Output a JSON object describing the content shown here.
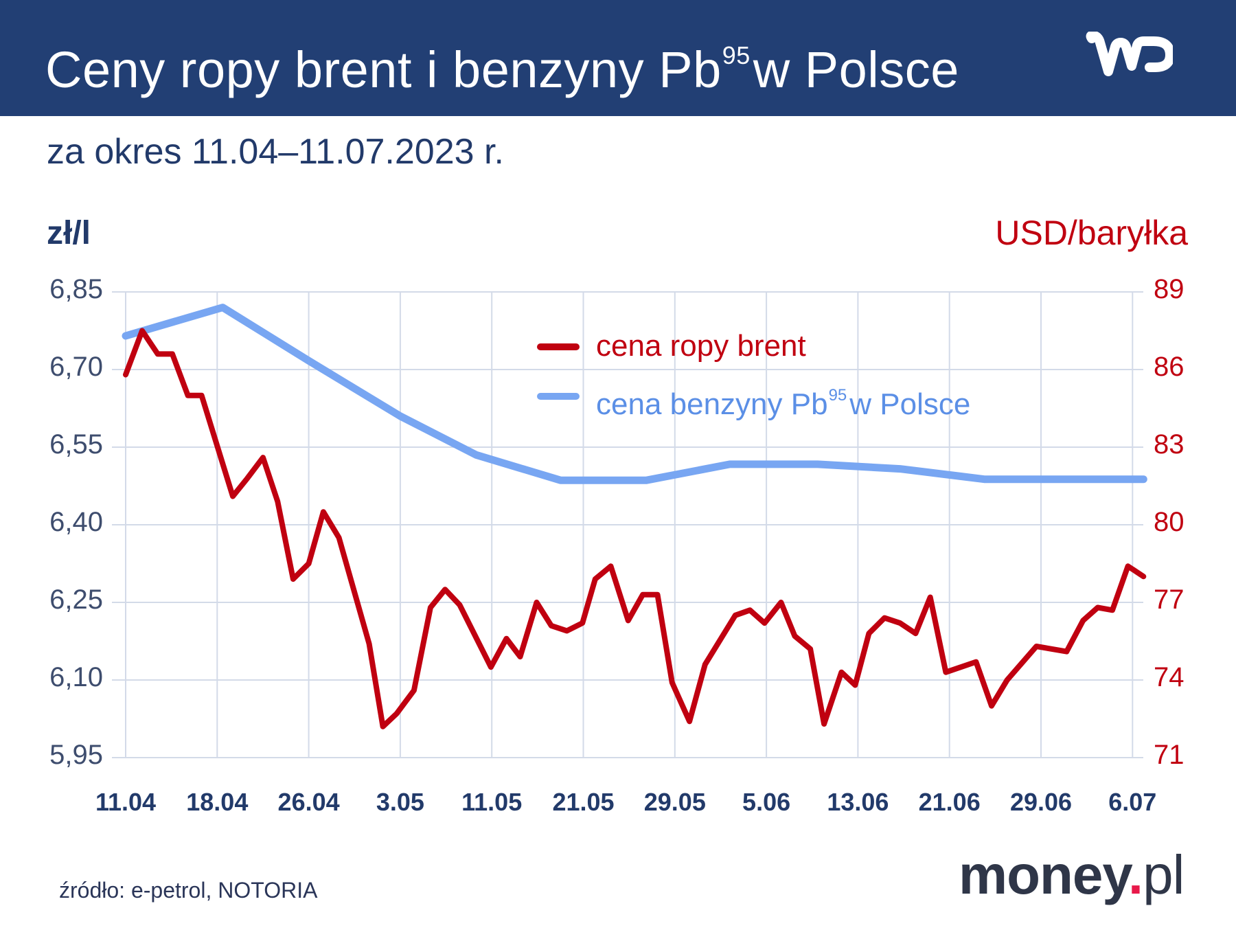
{
  "header": {
    "title_before_sup": "Ceny ropy brent i benzyny Pb",
    "title_sup": "95",
    "title_after_sup": "w Polsce",
    "logo": "wp-logo",
    "background_color": "#223f74"
  },
  "subtitle": "za okres 11.04–11.07.2023 r.",
  "axes": {
    "left_unit": "zł/l",
    "right_unit": "USD/baryłka",
    "left_ticks": [
      "6,85",
      "6,70",
      "6,55",
      "6,40",
      "6,25",
      "6,10",
      "5,95"
    ],
    "right_ticks": [
      "89",
      "86",
      "83",
      "80",
      "77",
      "74",
      "71"
    ],
    "x_ticks": [
      "11.04",
      "18.04",
      "26.04",
      "3.05",
      "11.05",
      "21.05",
      "29.05",
      "5.06",
      "13.06",
      "21.06",
      "29.06",
      "6.07"
    ]
  },
  "legend": {
    "brent_label": "cena ropy brent",
    "pb95_label_before_sup": "cena benzyny Pb",
    "pb95_label_sup": "95",
    "pb95_label_after_sup": "w Polsce"
  },
  "footer": {
    "source": "źródło: e-petrol, NOTORIA",
    "brand_main": "money",
    "brand_dot": ".",
    "brand_tld": "pl"
  },
  "colors": {
    "brent": "#c00010",
    "pb95": "#78a6f2",
    "grid": "#d3dae8",
    "axis_text_left": "#3e4d6e",
    "axis_text_right": "#c00010",
    "money_dot": "#e8194a"
  },
  "chart_data": {
    "type": "line",
    "title": "Ceny ropy brent i benzyny Pb95 w Polsce",
    "subtitle": "za okres 11.04–11.07.2023 r.",
    "xlabel": "",
    "ylabel_left": "zł/l",
    "ylabel_right": "USD/baryłka",
    "ylim_left": [
      5.95,
      6.85
    ],
    "ylim_right": [
      71,
      89
    ],
    "grid": true,
    "legend_position": "upper-center",
    "x_tick_labels": [
      "11.04",
      "18.04",
      "26.04",
      "3.05",
      "11.05",
      "21.05",
      "29.05",
      "5.06",
      "13.06",
      "21.06",
      "29.06",
      "6.07"
    ],
    "x_tick_positions": [
      0,
      1,
      2,
      3,
      4,
      5,
      6,
      7,
      8,
      9,
      10,
      11
    ],
    "x_extent": [
      0,
      11.14
    ],
    "series": [
      {
        "name": "cena ropy brent",
        "axis": "right",
        "x": [
          0,
          0.18,
          0.35,
          0.51,
          0.68,
          0.83,
          1.17,
          1.33,
          1.5,
          1.66,
          1.83,
          2.0,
          2.16,
          2.33,
          2.66,
          2.81,
          2.96,
          3.15,
          3.33,
          3.49,
          3.65,
          3.99,
          4.16,
          4.31,
          4.49,
          4.65,
          4.82,
          4.99,
          5.13,
          5.3,
          5.49,
          5.65,
          5.81,
          5.97,
          6.16,
          6.33,
          6.66,
          6.82,
          6.98,
          7.16,
          7.31,
          7.48,
          7.63,
          7.82,
          7.97,
          8.12,
          8.29,
          8.46,
          8.63,
          8.79,
          8.96,
          9.29,
          9.46,
          9.63,
          9.95,
          10.28,
          10.46,
          10.62,
          10.78,
          10.95,
          11.12
        ],
        "values": [
          85.8,
          87.5,
          86.6,
          86.6,
          85.0,
          85.0,
          81.1,
          81.8,
          82.6,
          80.9,
          77.9,
          78.5,
          80.5,
          79.5,
          75.4,
          72.2,
          72.7,
          73.6,
          76.8,
          77.5,
          76.9,
          74.5,
          75.6,
          74.9,
          77.0,
          76.1,
          75.9,
          76.2,
          77.9,
          78.4,
          76.3,
          77.3,
          77.3,
          73.9,
          72.4,
          74.6,
          76.5,
          76.7,
          76.2,
          77.0,
          75.7,
          75.2,
          72.3,
          74.3,
          73.8,
          75.8,
          76.4,
          76.2,
          75.8,
          77.2,
          74.3,
          74.7,
          73.0,
          74.0,
          75.3,
          75.1,
          76.3,
          76.8,
          76.7,
          78.4,
          78.0
        ]
      },
      {
        "name": "cena benzyny Pb95 w Polsce",
        "axis": "left",
        "x": [
          0,
          1.06,
          2.0,
          3.0,
          3.83,
          4.75,
          5.69,
          6.6,
          7.56,
          8.46,
          9.38,
          11.12
        ],
        "values": [
          6.765,
          6.82,
          6.717,
          6.61,
          6.535,
          6.486,
          6.486,
          6.517,
          6.517,
          6.508,
          6.488,
          6.488
        ]
      }
    ]
  }
}
